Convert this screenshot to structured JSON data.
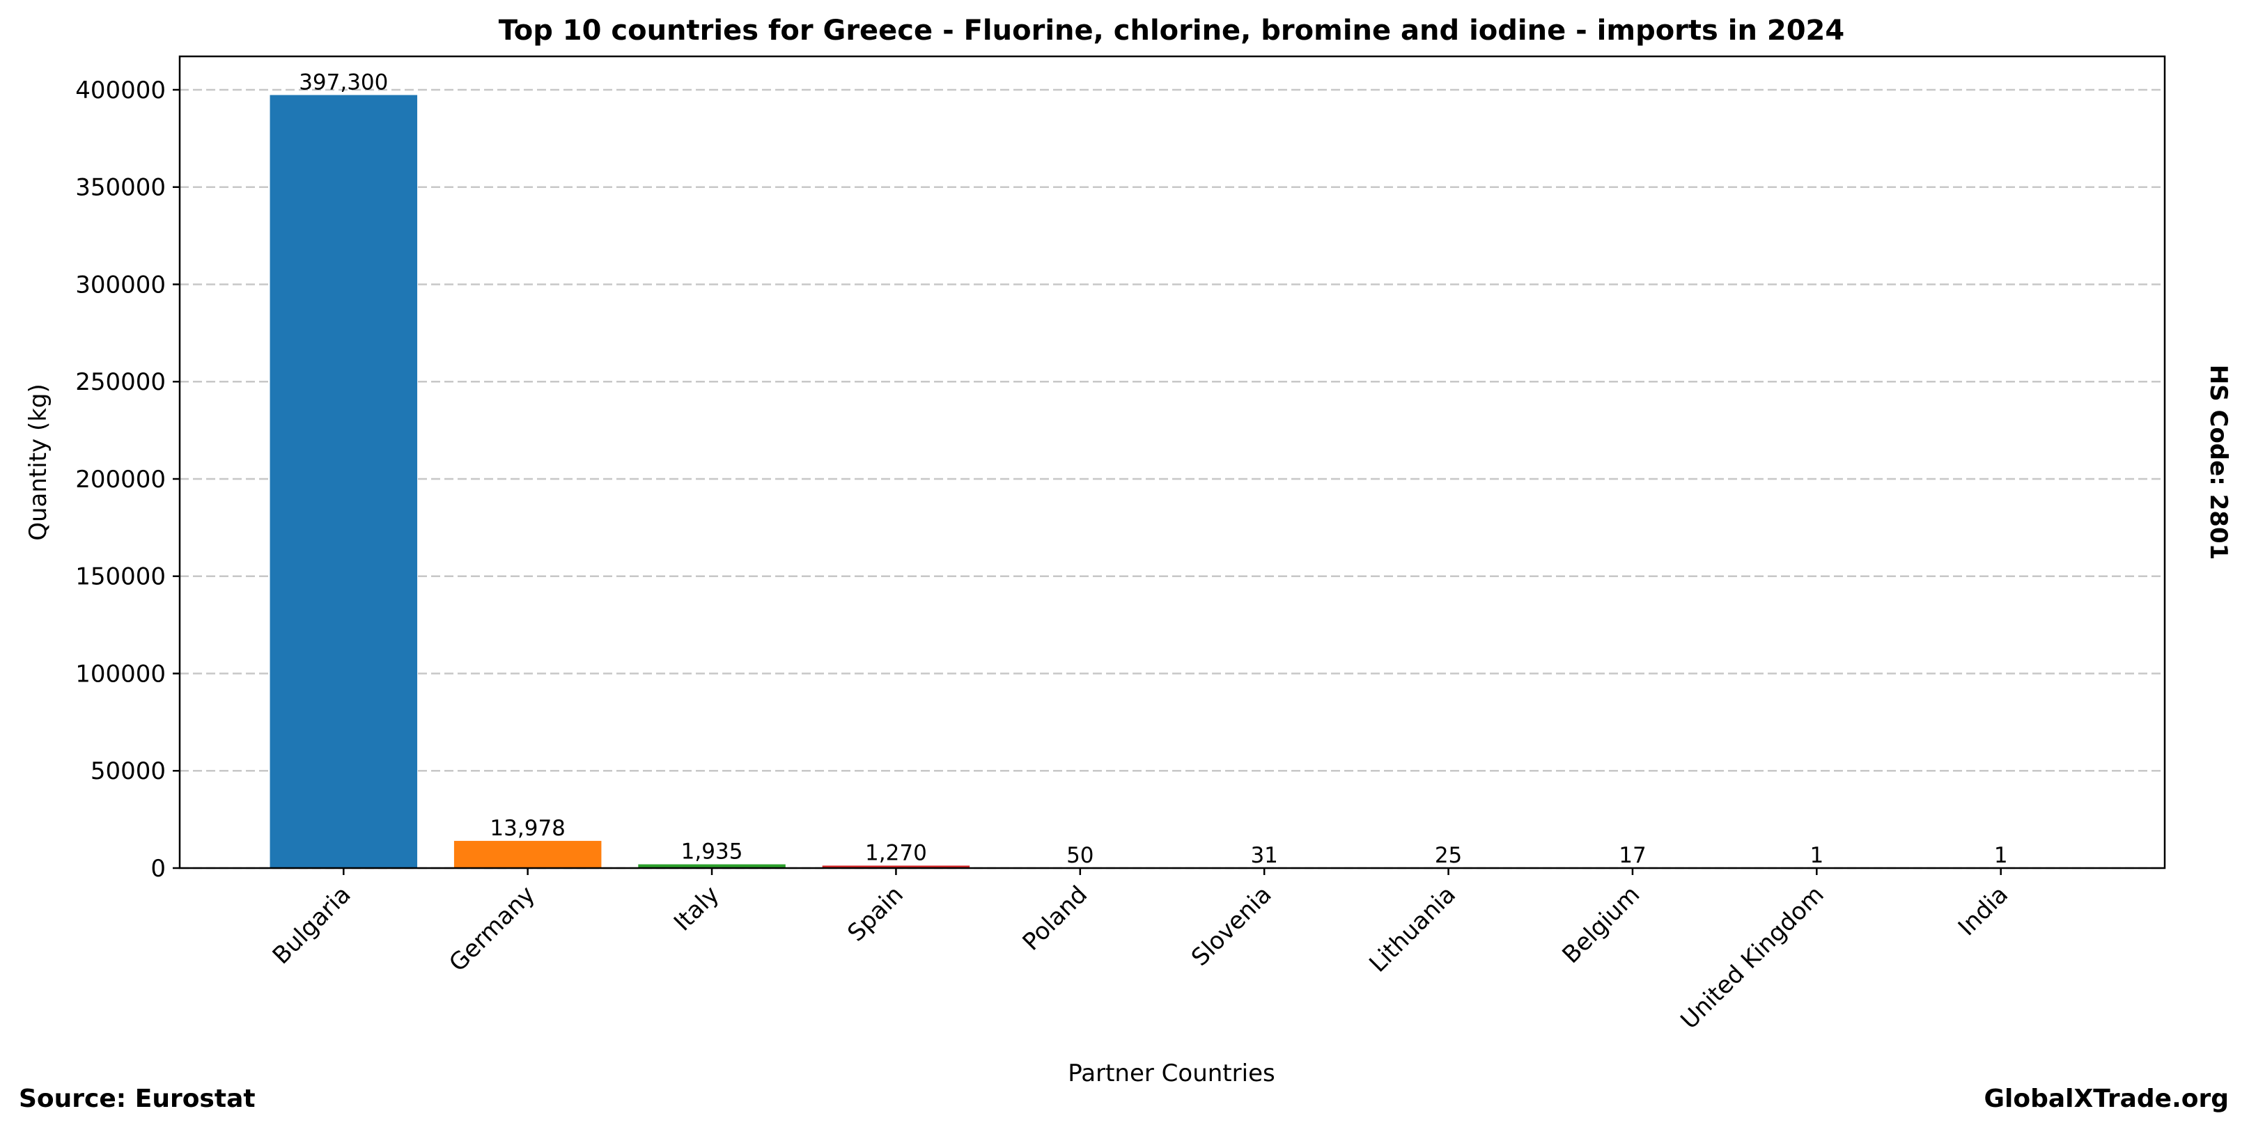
{
  "chart_data": {
    "type": "bar",
    "title": "Top 10 countries for Greece - Fluorine, chlorine, bromine and iodine - imports in 2024",
    "xlabel": "Partner Countries",
    "ylabel": "Quantity (kg)",
    "categories": [
      "Bulgaria",
      "Germany",
      "Italy",
      "Spain",
      "Poland",
      "Slovenia",
      "Lithuania",
      "Belgium",
      "United Kingdom",
      "India"
    ],
    "values": [
      397300,
      13978,
      1935,
      1270,
      50,
      31,
      25,
      17,
      1,
      1
    ],
    "value_labels": [
      "397,300",
      "13,978",
      "1,935",
      "1,270",
      "50",
      "31",
      "25",
      "17",
      "1",
      "1"
    ],
    "colors": [
      "#1f77b4",
      "#ff7f0e",
      "#2ca02c",
      "#d62728",
      "#9467bd",
      "#8c564b",
      "#e377c2",
      "#7f7f7f",
      "#bcbd22",
      "#17becf"
    ],
    "ylim": [
      0,
      417165
    ],
    "yticks": [
      0,
      50000,
      100000,
      150000,
      200000,
      250000,
      300000,
      350000,
      400000
    ],
    "ytick_labels": [
      "0",
      "50000",
      "100000",
      "150000",
      "200000",
      "250000",
      "300000",
      "350000",
      "400000"
    ],
    "grid": "y-dashed",
    "legend": "none"
  },
  "annotations": {
    "side_label": "HS Code: 2801",
    "source": "Source: Eurostat",
    "brand": "GlobalXTrade.org"
  }
}
